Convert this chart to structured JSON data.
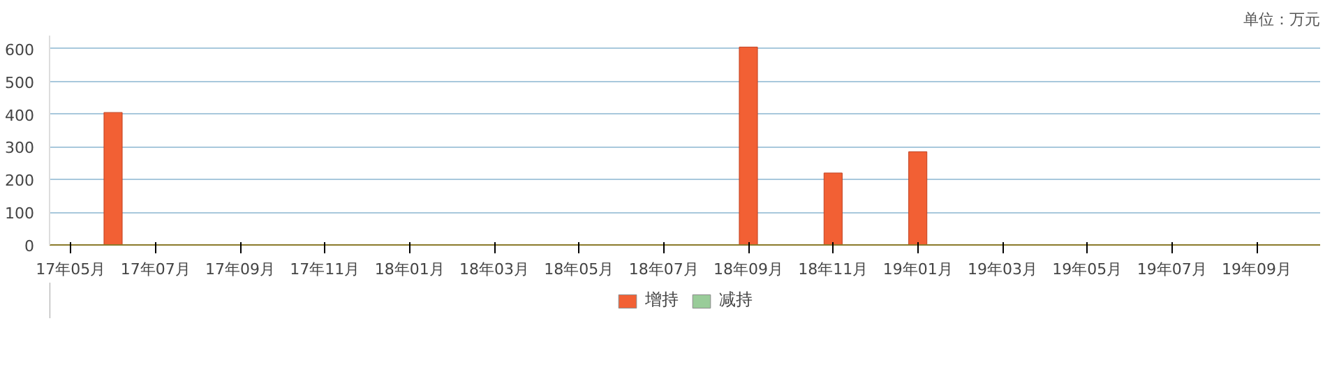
{
  "chart_data": {
    "type": "bar",
    "categories": [
      "17年05月",
      null,
      "17年07月",
      null,
      "17年09月",
      null,
      "17年11月",
      null,
      "18年01月",
      null,
      "18年03月",
      null,
      "18年05月",
      null,
      "18年07月",
      null,
      "18年09月",
      null,
      "18年11月",
      null,
      "19年01月",
      null,
      "19年03月",
      null,
      "19年05月",
      null,
      "19年07月",
      null,
      "19年09月",
      null
    ],
    "series": [
      {
        "name": "增持",
        "color": "#f26034",
        "values": [
          null,
          405,
          null,
          null,
          null,
          null,
          null,
          null,
          null,
          null,
          null,
          null,
          null,
          null,
          null,
          null,
          605,
          null,
          220,
          null,
          285,
          null,
          null,
          null,
          null,
          null,
          null,
          null,
          null,
          null
        ]
      },
      {
        "name": "减持",
        "color": "#99cc99",
        "values": [
          null,
          null,
          null,
          null,
          null,
          null,
          null,
          null,
          null,
          null,
          null,
          null,
          null,
          null,
          null,
          null,
          null,
          null,
          null,
          null,
          null,
          null,
          null,
          null,
          null,
          null,
          null,
          null,
          null,
          null
        ]
      }
    ],
    "ylim": [
      0,
      640
    ],
    "yticks": [
      0,
      100,
      200,
      300,
      400,
      500,
      600
    ],
    "grid": "y",
    "legend": "bottom",
    "annotations": [
      "单位：万元"
    ]
  }
}
